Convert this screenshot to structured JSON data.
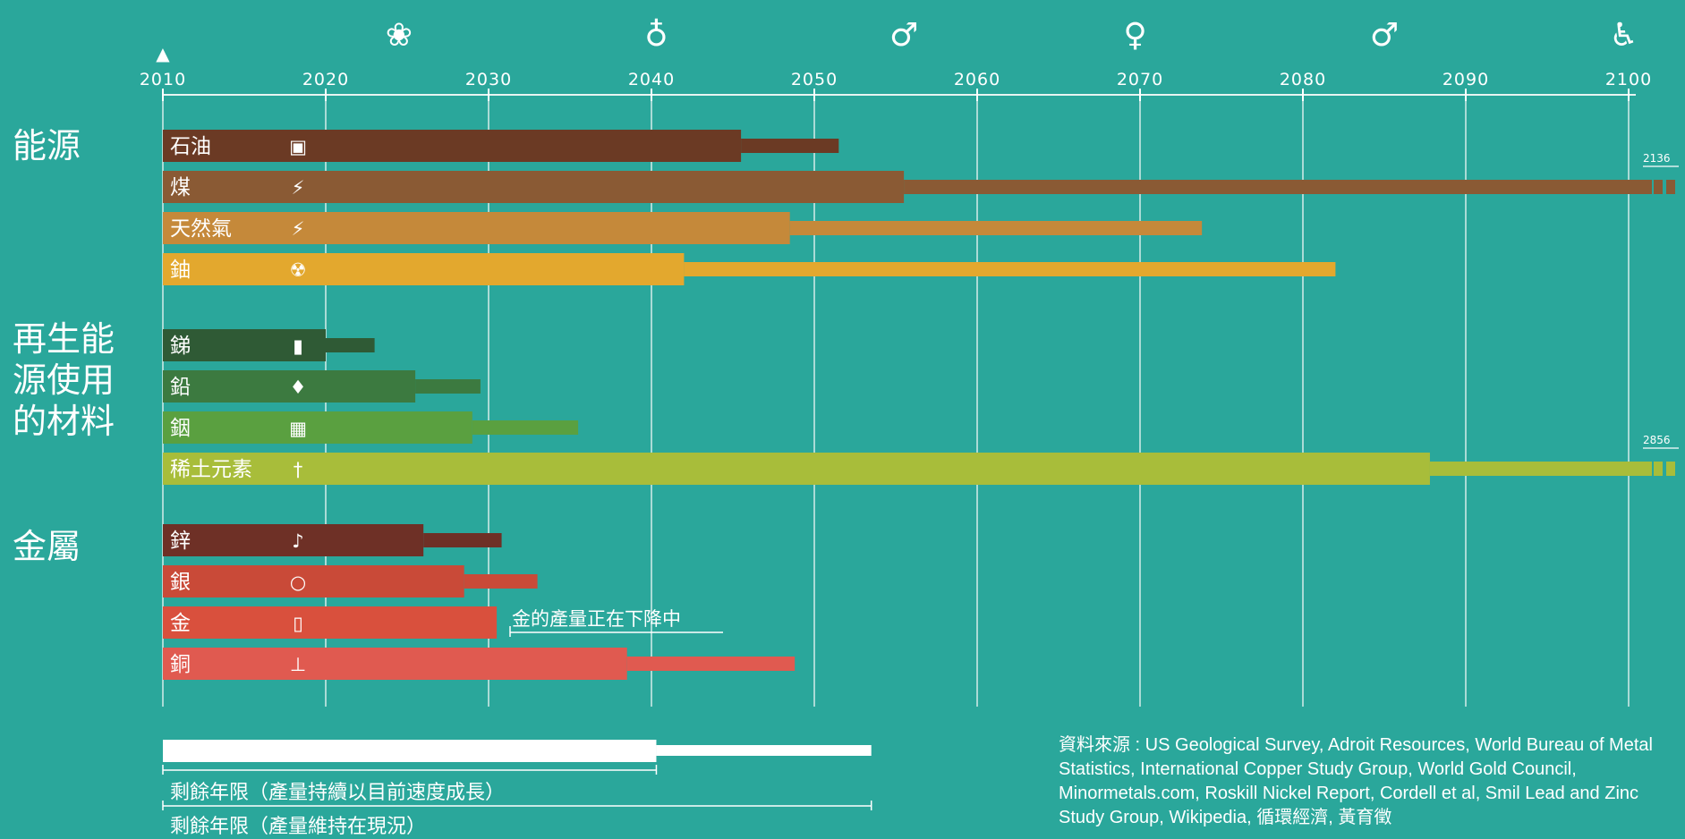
{
  "chart_data": {
    "type": "bar",
    "x_axis": {
      "ticks": [
        "2010",
        "2020",
        "2030",
        "2040",
        "2050",
        "2060",
        "2070",
        "2080",
        "2090",
        "2100"
      ],
      "xlim": [
        2010,
        2100
      ]
    },
    "life_stage_icons": [
      "baby-icon",
      "child-icon",
      "bride-icon",
      "family-icon",
      "elder-icon",
      "elderly-couple-icon",
      "wheelchair-icon"
    ],
    "groups": [
      {
        "label": "能源",
        "items": [
          {
            "name": "石油",
            "icon": "fuel-pump-icon",
            "color": "#6b3a24",
            "growth_end": 2045.5,
            "current_end": 2051.5
          },
          {
            "name": "煤",
            "icon": "lightning-icon",
            "color": "#8a5a34",
            "growth_end": 2055.5,
            "current_end": 2100,
            "beyond": "2136",
            "arrow": true
          },
          {
            "name": "天然氣",
            "icon": "lightning-icon",
            "color": "#c5893a",
            "growth_end": 2048.5,
            "current_end": 2073.8
          },
          {
            "name": "鈾",
            "icon": "radiation-icon",
            "color": "#e3a82e",
            "growth_end": 2042,
            "current_end": 2082
          }
        ]
      },
      {
        "label": "再生能\n源使用\n的材料",
        "items": [
          {
            "name": "銻",
            "icon": "battery-icon",
            "color": "#2f5a35",
            "growth_end": 2020,
            "current_end": 2023
          },
          {
            "name": "鉛",
            "icon": "car-icon",
            "color": "#3c7a40",
            "growth_end": 2025.5,
            "current_end": 2029.5
          },
          {
            "name": "銦",
            "icon": "solar-panel-icon",
            "color": "#5aa040",
            "growth_end": 2029,
            "current_end": 2035.5
          },
          {
            "name": "稀土元素",
            "icon": "wind-turbine-icon",
            "color": "#a8bd3a",
            "growth_end": 2087.8,
            "current_end": 2100,
            "beyond": "2856",
            "arrow": true
          }
        ]
      },
      {
        "label": "金屬",
        "items": [
          {
            "name": "鋅",
            "icon": "saxophone-icon",
            "color": "#6e3026",
            "growth_end": 2026,
            "current_end": 2030.8
          },
          {
            "name": "銀",
            "icon": "ring-icon",
            "color": "#c94a38",
            "growth_end": 2028.5,
            "current_end": 2033
          },
          {
            "name": "金",
            "icon": "phone-icon",
            "color": "#d9503d",
            "growth_end": 2030.5,
            "current_end": 2030.5
          },
          {
            "name": "銅",
            "icon": "faucet-icon",
            "color": "#e05a50",
            "growth_end": 2038.5,
            "current_end": 2048.8
          }
        ]
      }
    ],
    "annotation": "金的產量正在下降中",
    "legend": {
      "growth": "剩餘年限（產量持續以目前速度成長）",
      "current": "剩餘年限（產量維持在現況）"
    }
  },
  "source": "資料來源 : US Geological Survey, Adroit Resources, World Bureau of Metal Statistics, International Copper Study Group, World Gold Council, Minormetals.com, Roskill Nickel Report, Cordell et al, Smil Lead and Zinc Study Group, Wikipedia, 循環經濟, 黃育徵",
  "colors": {
    "background": "#2aa79b",
    "grid": "#e8f4f2",
    "legend_bar": "#ffffff"
  }
}
